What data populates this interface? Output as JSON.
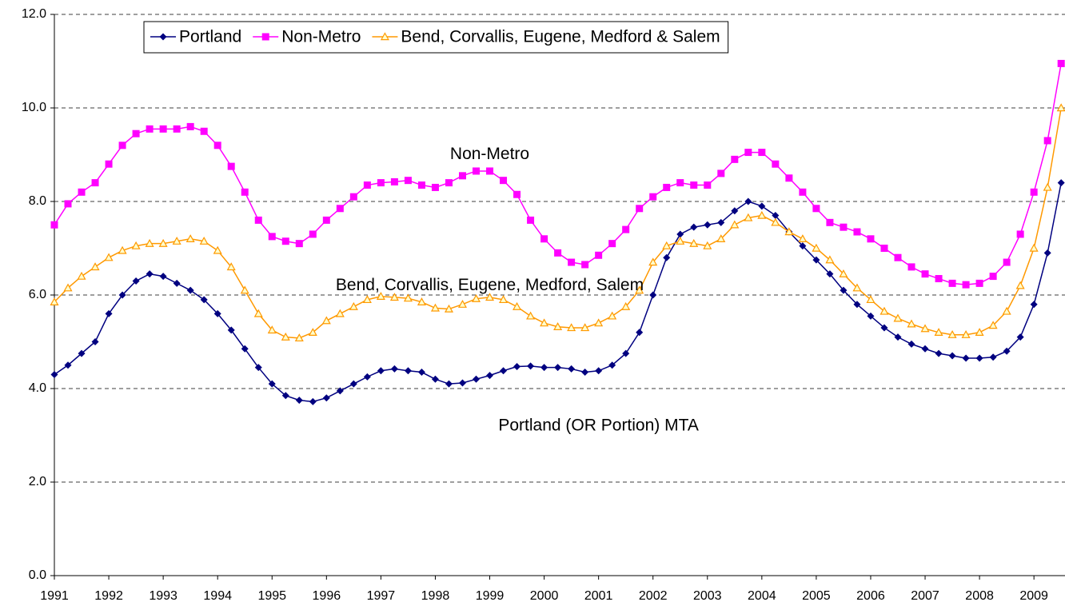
{
  "chart_data": {
    "type": "line",
    "x": [
      1991,
      1991.25,
      1991.5,
      1991.75,
      1992,
      1992.25,
      1992.5,
      1992.75,
      1993,
      1993.25,
      1993.5,
      1993.75,
      1994,
      1994.25,
      1994.5,
      1994.75,
      1995,
      1995.25,
      1995.5,
      1995.75,
      1996,
      1996.25,
      1996.5,
      1996.75,
      1997,
      1997.25,
      1997.5,
      1997.75,
      1998,
      1998.25,
      1998.5,
      1998.75,
      1999,
      1999.25,
      1999.5,
      1999.75,
      2000,
      2000.25,
      2000.5,
      2000.75,
      2001,
      2001.25,
      2001.5,
      2001.75,
      2002,
      2002.25,
      2002.5,
      2002.75,
      2003,
      2003.25,
      2003.5,
      2003.75,
      2004,
      2004.25,
      2004.5,
      2004.75,
      2005,
      2005.25,
      2005.5,
      2005.75,
      2006,
      2006.25,
      2006.5,
      2006.75,
      2007,
      2007.25,
      2007.5,
      2007.75,
      2008,
      2008.25,
      2008.5,
      2008.75,
      2009,
      2009.25,
      2009.5
    ],
    "series": [
      {
        "name": "Portland",
        "color": "#000080",
        "marker": "diamond",
        "values": [
          4.3,
          4.5,
          4.75,
          5.0,
          5.6,
          6.0,
          6.3,
          6.45,
          6.4,
          6.25,
          6.1,
          5.9,
          5.6,
          5.25,
          4.85,
          4.45,
          4.1,
          3.85,
          3.75,
          3.72,
          3.8,
          3.95,
          4.1,
          4.25,
          4.38,
          4.42,
          4.38,
          4.35,
          4.2,
          4.1,
          4.12,
          4.2,
          4.28,
          4.38,
          4.47,
          4.48,
          4.45,
          4.45,
          4.42,
          4.35,
          4.38,
          4.5,
          4.75,
          5.2,
          6.0,
          6.8,
          7.3,
          7.45,
          7.5,
          7.55,
          7.8,
          8.0,
          7.9,
          7.7,
          7.35,
          7.05,
          6.75,
          6.45,
          6.1,
          5.8,
          5.55,
          5.3,
          5.1,
          4.95,
          4.85,
          4.75,
          4.7,
          4.65,
          4.65,
          4.67,
          4.8,
          5.1,
          5.8,
          6.9,
          8.4
        ]
      },
      {
        "name": "Non-Metro",
        "color": "#ff00ff",
        "marker": "square",
        "values": [
          7.5,
          7.95,
          8.2,
          8.4,
          8.8,
          9.2,
          9.45,
          9.55,
          9.55,
          9.55,
          9.6,
          9.5,
          9.2,
          8.75,
          8.2,
          7.6,
          7.25,
          7.15,
          7.1,
          7.3,
          7.6,
          7.85,
          8.1,
          8.35,
          8.4,
          8.42,
          8.45,
          8.35,
          8.3,
          8.4,
          8.55,
          8.65,
          8.65,
          8.45,
          8.15,
          7.6,
          7.2,
          6.9,
          6.7,
          6.65,
          6.85,
          7.1,
          7.4,
          7.85,
          8.1,
          8.3,
          8.4,
          8.35,
          8.35,
          8.6,
          8.9,
          9.05,
          9.05,
          8.8,
          8.5,
          8.2,
          7.85,
          7.55,
          7.45,
          7.35,
          7.2,
          7.0,
          6.8,
          6.6,
          6.45,
          6.35,
          6.25,
          6.22,
          6.25,
          6.4,
          6.7,
          7.3,
          8.2,
          9.3,
          10.95
        ]
      },
      {
        "name": "Bend, Corvallis, Eugene, Medford & Salem",
        "color": "#ff9900",
        "marker": "triangle",
        "values": [
          5.85,
          6.15,
          6.4,
          6.6,
          6.8,
          6.95,
          7.05,
          7.1,
          7.1,
          7.15,
          7.2,
          7.15,
          6.95,
          6.6,
          6.1,
          5.6,
          5.25,
          5.1,
          5.08,
          5.2,
          5.45,
          5.6,
          5.75,
          5.9,
          5.97,
          5.95,
          5.93,
          5.85,
          5.72,
          5.7,
          5.8,
          5.92,
          5.95,
          5.9,
          5.75,
          5.55,
          5.4,
          5.32,
          5.3,
          5.3,
          5.4,
          5.55,
          5.75,
          6.1,
          6.7,
          7.05,
          7.15,
          7.1,
          7.05,
          7.2,
          7.5,
          7.65,
          7.7,
          7.55,
          7.35,
          7.2,
          7.0,
          6.75,
          6.45,
          6.15,
          5.9,
          5.65,
          5.5,
          5.38,
          5.28,
          5.2,
          5.15,
          5.15,
          5.2,
          5.35,
          5.65,
          6.2,
          7.0,
          8.3,
          10.0
        ]
      }
    ],
    "annotations": [
      {
        "text": "Non-Metro",
        "x": 1999,
        "y": 9.0
      },
      {
        "text": "Bend, Corvallis, Eugene, Medford, Salem",
        "x": 1999,
        "y": 6.2
      },
      {
        "text": "Portland (OR Portion) MTA",
        "x": 2001,
        "y": 3.2
      }
    ],
    "xlim": [
      1991,
      2009.6
    ],
    "xticks": [
      1991,
      1992,
      1993,
      1994,
      1995,
      1996,
      1997,
      1998,
      1999,
      2000,
      2001,
      2002,
      2003,
      2004,
      2005,
      2006,
      2007,
      2008,
      2009
    ],
    "ylim": [
      0,
      12
    ],
    "yticks": [
      {
        "value": 0,
        "label": "0.0"
      },
      {
        "value": 2,
        "label": "2.0"
      },
      {
        "value": 4,
        "label": "4.0"
      },
      {
        "value": 6,
        "label": "6.0"
      },
      {
        "value": 8,
        "label": "8.0"
      },
      {
        "value": 10,
        "label": "10.0"
      },
      {
        "value": 12,
        "label": "12.0"
      }
    ],
    "grid": true,
    "legend": "top"
  }
}
